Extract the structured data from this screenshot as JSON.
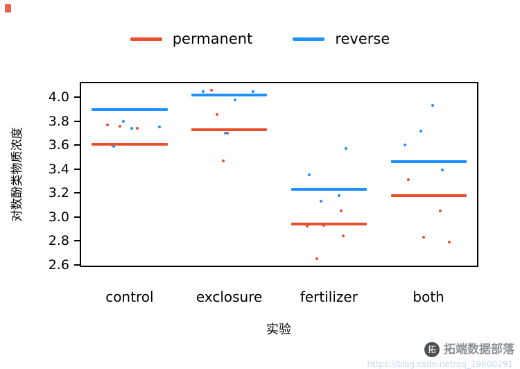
{
  "legend": {
    "items": [
      {
        "label": "permanent",
        "color": "#e8502d"
      },
      {
        "label": "reverse",
        "color": "#1e90ff"
      }
    ]
  },
  "watermark": {
    "logo_glyph": "拓",
    "brand": "拓端数据部落",
    "url": "https://blog.csdn.net/qq_19600291"
  },
  "chart_data": {
    "type": "scatter",
    "title": "",
    "xlabel": "实验",
    "ylabel": "对数酚类物质浓度",
    "categories": [
      "control",
      "exclosure",
      "fertilizer",
      "both"
    ],
    "ylim": [
      2.58,
      4.13
    ],
    "y_ticks": [
      "2.6",
      "2.8",
      "3.0",
      "3.2",
      "3.4",
      "3.6",
      "3.8",
      "4.0"
    ],
    "grid": false,
    "legend_position": "top",
    "series": [
      {
        "name": "permanent",
        "color": "#e8502d",
        "means": [
          3.61,
          3.73,
          2.94,
          3.18
        ],
        "points": [
          [
            0,
            -0.22,
            3.77
          ],
          [
            0,
            -0.1,
            3.76
          ],
          [
            0,
            0.08,
            3.74
          ],
          [
            0,
            -0.18,
            3.6
          ],
          [
            1,
            -0.18,
            4.06
          ],
          [
            1,
            -0.12,
            3.86
          ],
          [
            1,
            -0.02,
            3.7
          ],
          [
            1,
            -0.06,
            3.47
          ],
          [
            2,
            -0.22,
            2.92
          ],
          [
            2,
            -0.05,
            2.93
          ],
          [
            2,
            0.12,
            3.05
          ],
          [
            2,
            0.14,
            2.84
          ],
          [
            2,
            -0.12,
            2.65
          ],
          [
            3,
            -0.2,
            3.31
          ],
          [
            3,
            0.12,
            3.05
          ],
          [
            3,
            -0.05,
            2.83
          ],
          [
            3,
            0.21,
            2.79
          ]
        ]
      },
      {
        "name": "reverse",
        "color": "#1e90ff",
        "means": [
          3.9,
          4.02,
          3.23,
          3.46
        ],
        "points": [
          [
            0,
            -0.06,
            3.8
          ],
          [
            0,
            0.3,
            3.75
          ],
          [
            0,
            0.02,
            3.74
          ],
          [
            0,
            -0.16,
            3.59
          ],
          [
            1,
            0.24,
            4.05
          ],
          [
            1,
            -0.26,
            4.05
          ],
          [
            1,
            0.06,
            3.98
          ],
          [
            1,
            -0.04,
            3.7
          ],
          [
            2,
            -0.2,
            3.35
          ],
          [
            2,
            -0.08,
            3.13
          ],
          [
            2,
            0.17,
            3.57
          ],
          [
            2,
            0.1,
            3.18
          ],
          [
            3,
            0.04,
            3.93
          ],
          [
            3,
            -0.08,
            3.72
          ],
          [
            3,
            -0.24,
            3.6
          ],
          [
            3,
            0.14,
            3.39
          ]
        ]
      }
    ]
  }
}
